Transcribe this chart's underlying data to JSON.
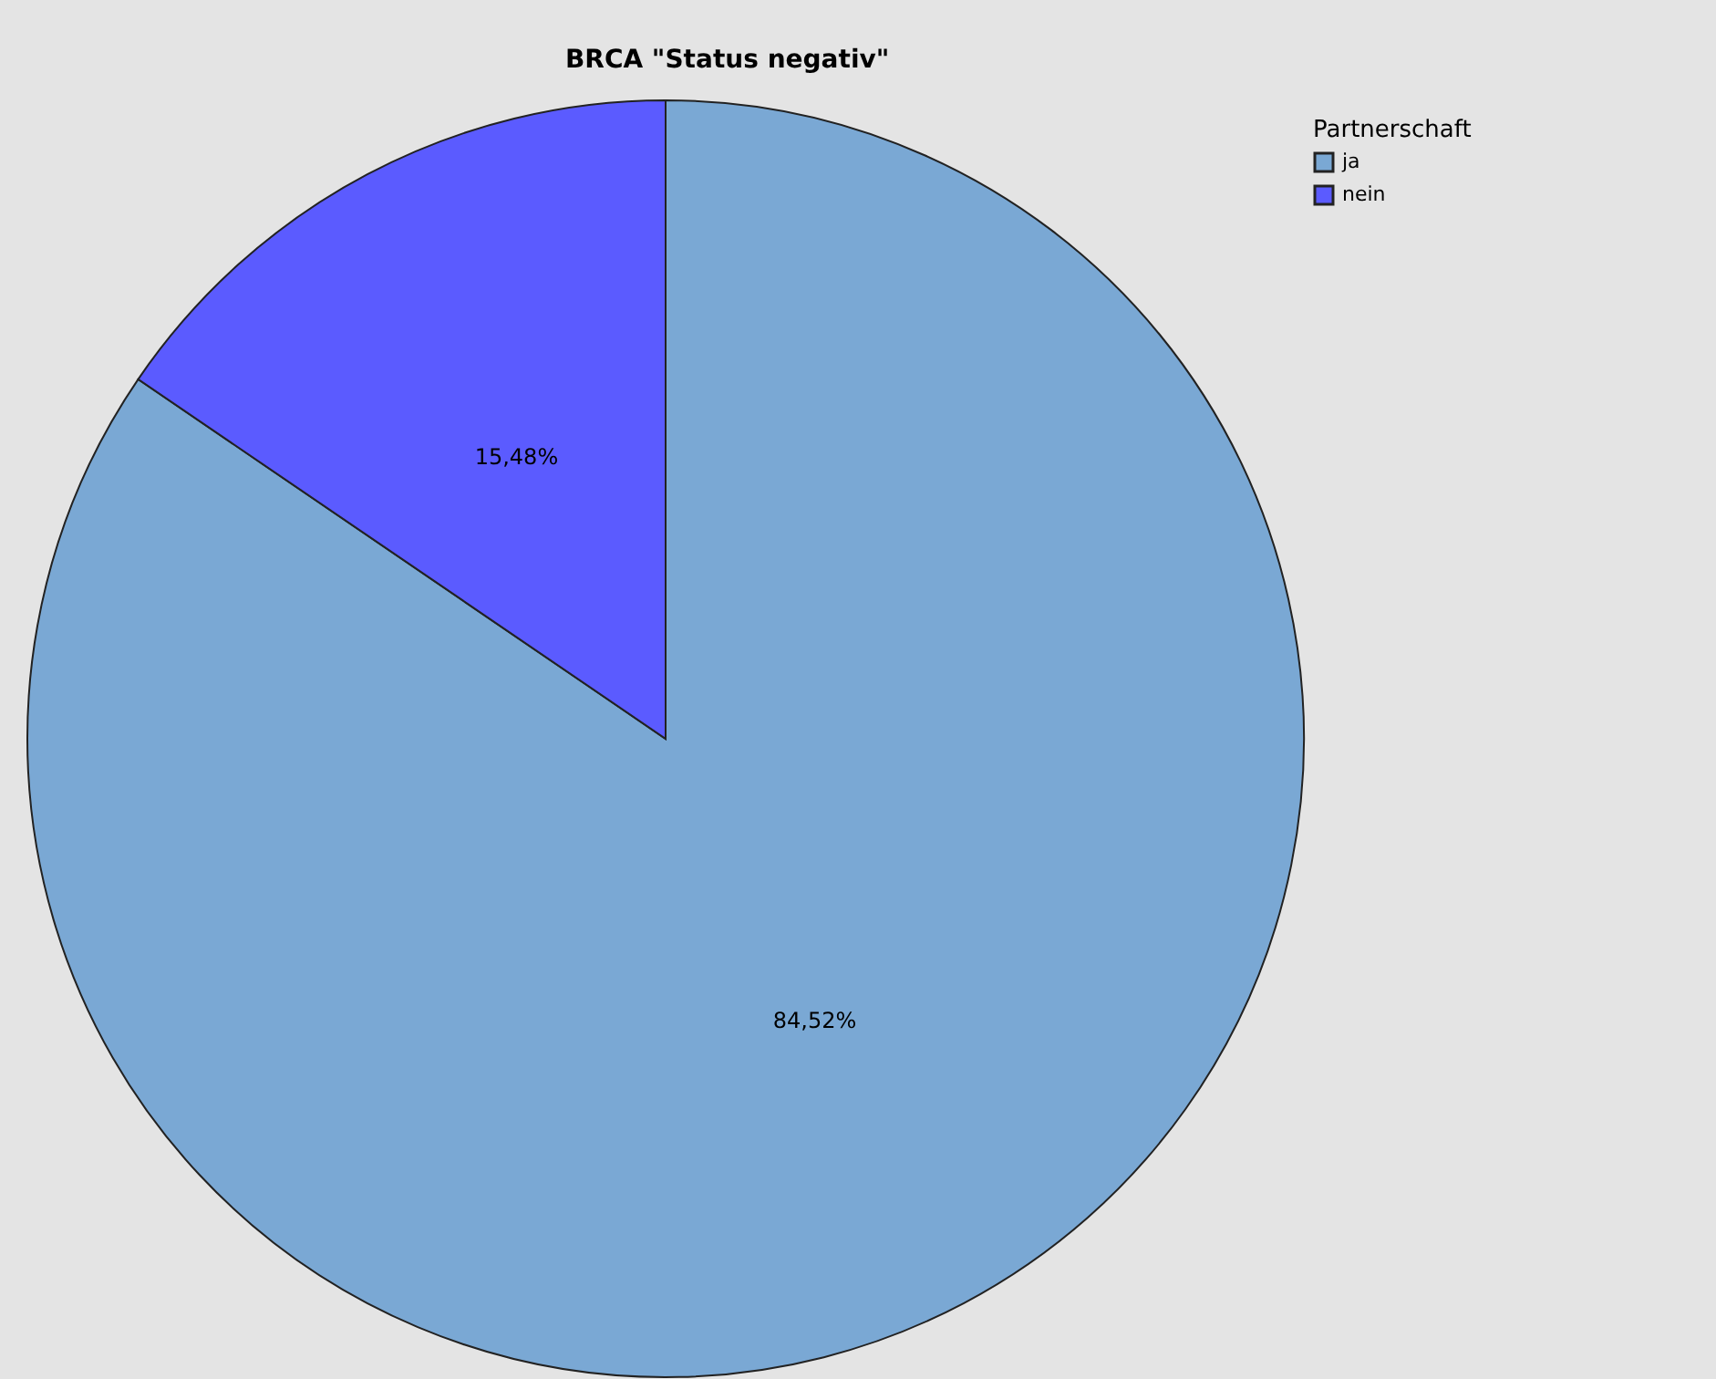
{
  "chart_data": {
    "type": "pie",
    "title": "BRCA \"Status negativ\"",
    "legend_title": "Partnerschaft",
    "categories": [
      "ja",
      "nein"
    ],
    "values": [
      84.52,
      15.48
    ],
    "colors": [
      "#7aa8d4",
      "#5b5bff"
    ],
    "value_labels": [
      "84,52%",
      "15,48%"
    ],
    "legend": "top right"
  }
}
